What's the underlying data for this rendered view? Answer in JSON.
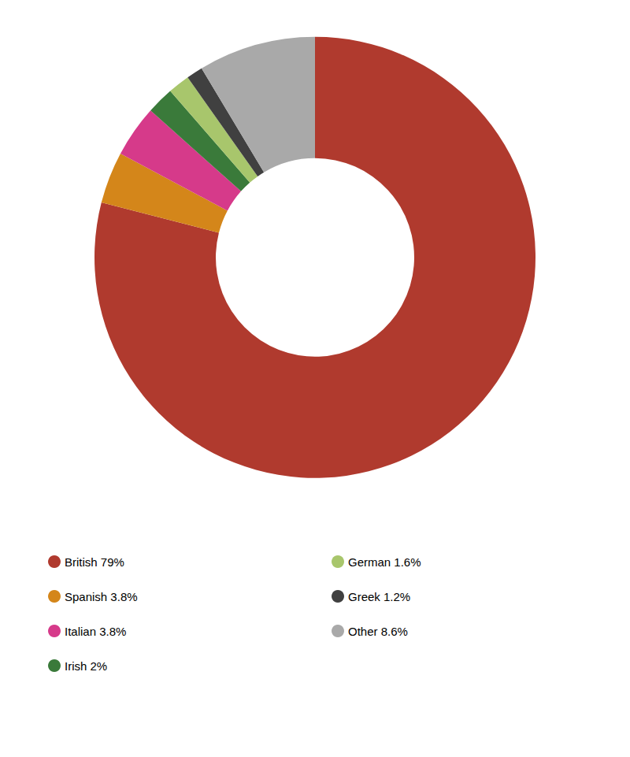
{
  "chart_data": {
    "type": "pie",
    "categories": [
      "British 79%",
      "Spanish 3.8%",
      "Italian 3.8%",
      "Irish 2%",
      "German 1.6%",
      "Greek 1.2%",
      "Other 8.6%"
    ],
    "values": [
      79.0,
      3.8,
      3.8,
      2.0,
      1.6,
      1.2,
      8.6
    ],
    "colors": [
      "#b03a2e",
      "#d4861a",
      "#d63a8a",
      "#3a7a3a",
      "#a8c66c",
      "#404040",
      "#a9a9a9"
    ],
    "legend": "bottom"
  }
}
